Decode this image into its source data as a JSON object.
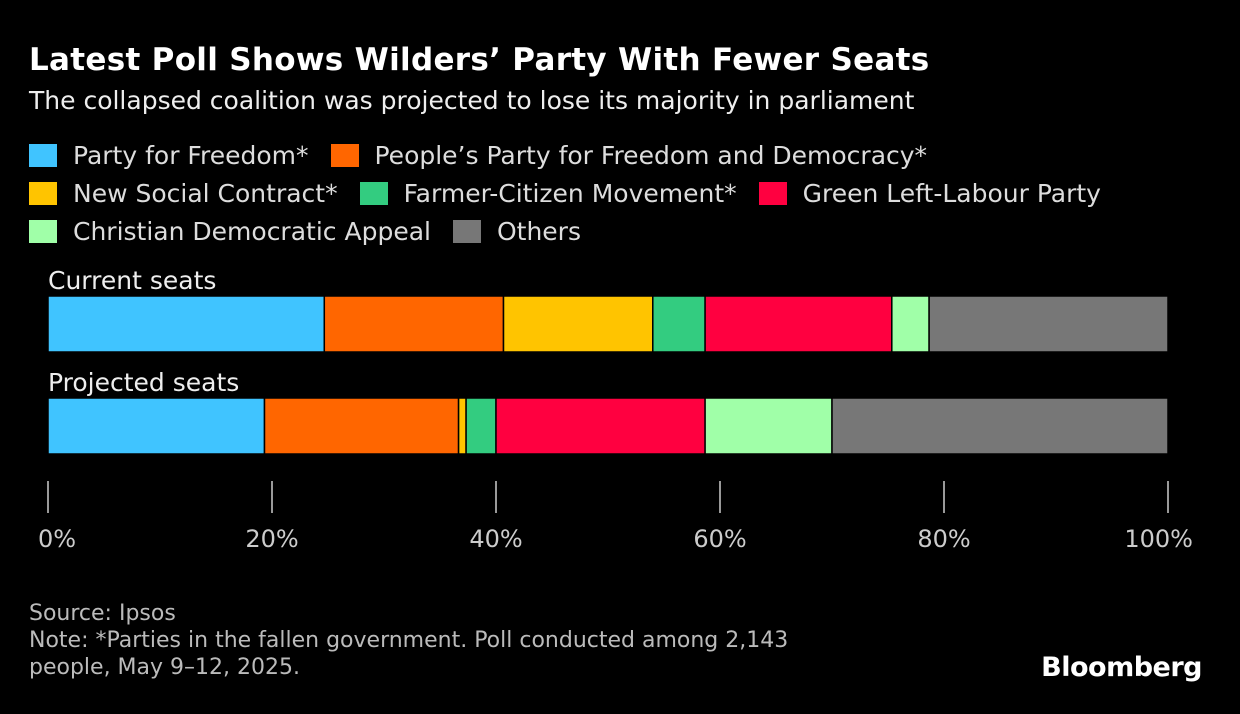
{
  "chart_data": {
    "type": "bar",
    "orientation": "horizontal",
    "stacked": true,
    "title": "Latest Poll Shows Wilders’ Party With Fewer Seats",
    "subtitle": "The collapsed coalition was projected to lose its majority in parliament",
    "categories": [
      "Current seats",
      "Projected seats"
    ],
    "series": [
      {
        "name": "Party for Freedom*",
        "color": "#40c4ff",
        "values": [
          24.67,
          19.33
        ]
      },
      {
        "name": "People’s Party for Freedom and Democracy*",
        "color": "#ff6600",
        "values": [
          16.0,
          17.33
        ]
      },
      {
        "name": "New Social Contract*",
        "color": "#ffc400",
        "values": [
          13.33,
          0.67
        ]
      },
      {
        "name": "Farmer-Citizen Movement*",
        "color": "#33cc80",
        "values": [
          4.67,
          2.67
        ]
      },
      {
        "name": "Green Left-Labour Party",
        "color": "#ff0040",
        "values": [
          16.67,
          18.67
        ]
      },
      {
        "name": "Christian Democratic Appeal",
        "color": "#a0ffa8",
        "values": [
          3.33,
          11.33
        ]
      },
      {
        "name": "Others",
        "color": "#777777",
        "values": [
          21.33,
          30.0
        ]
      }
    ],
    "xlim": [
      0,
      100
    ],
    "xticks": [
      "0%",
      "20%",
      "40%",
      "60%",
      "80%",
      "100%"
    ],
    "legend_position": "top",
    "grid": false
  },
  "footer": {
    "source": "Source: Ipsos",
    "note_line1": "Note: *Parties in the fallen government. Poll conducted among 2,143",
    "note_line2": "people, May 9–12, 2025."
  },
  "brand": "Bloomberg"
}
